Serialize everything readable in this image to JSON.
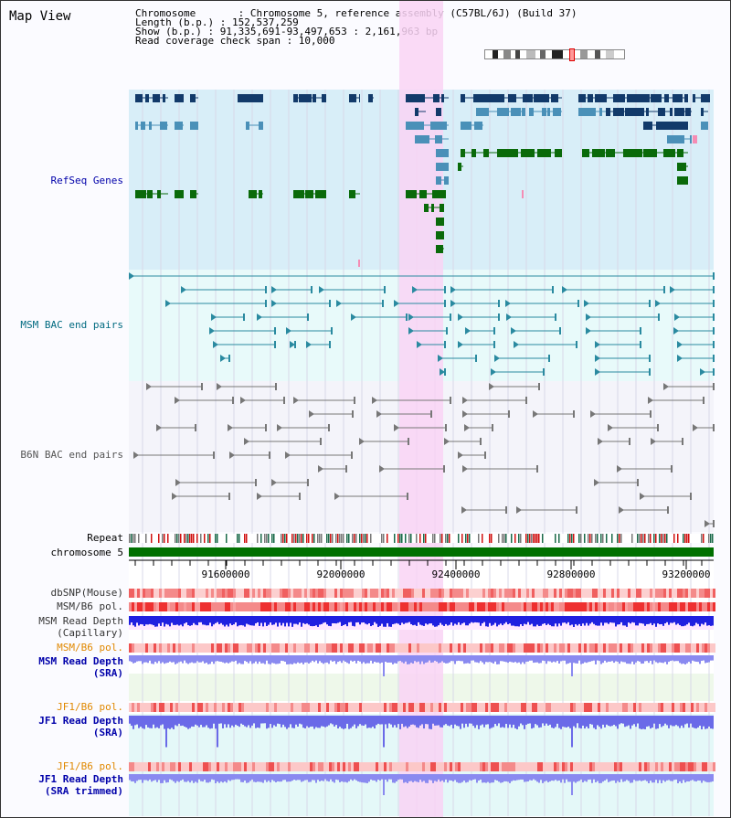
{
  "map_title": "Map View",
  "info": {
    "chromosome_line": "Chromosome       : Chromosome 5, reference assembly (C57BL/6J) (Build 37)",
    "length_line": "Length (b.p.) : 152,537,259",
    "show_line": "Show (b.p.) : 91,335,691-93,497,653 : 2,161,963 bp",
    "span_line": "Read coverage check span : 10,000"
  },
  "tracks": {
    "refseq": "RefSeq Genes",
    "msm_bac": "MSM BAC end pairs",
    "b6n_bac": "B6N BAC end pairs",
    "repeat": "Repeat",
    "chromosome": "chromosome 5",
    "dbsnp": "dbSNP(Mouse)",
    "msm_b6_pol": "MSM/B6 pol.",
    "msm_depth_cap_1": "MSM Read Depth",
    "msm_depth_cap_2": "(Capillary)",
    "msm_b6_pol_2": "MSM/B6 pol.",
    "msm_depth_sra_1": "MSM Read Depth",
    "msm_depth_sra_2": "(SRA)",
    "jf1_b6_pol": "JF1/B6 pol.",
    "jf1_depth_sra_1": "JF1 Read Depth",
    "jf1_depth_sra_2": "(SRA)",
    "jf1_b6_pol_2": "JF1/B6 pol.",
    "jf1_depth_trim_1": "JF1 Read Depth",
    "jf1_depth_trim_2": "(SRA trimmed)"
  },
  "ruler_ticks": [
    "91600000",
    "92000000",
    "92400000",
    "92800000",
    "93200000"
  ],
  "colors": {
    "refseq_bg": "#d8eef8",
    "msm_bg": "#e8fafa",
    "b6n_bg": "#f4f4fa",
    "highlight": "#f9d4f4",
    "label_blue": "#0000aa",
    "label_teal": "#006a80",
    "label_gray": "#555555",
    "label_orange": "#e08800",
    "gene_navy": "#123a6a",
    "gene_steel": "#4a90b8",
    "gene_green": "#0a6a0a",
    "chromosome_green": "#007000"
  }
}
